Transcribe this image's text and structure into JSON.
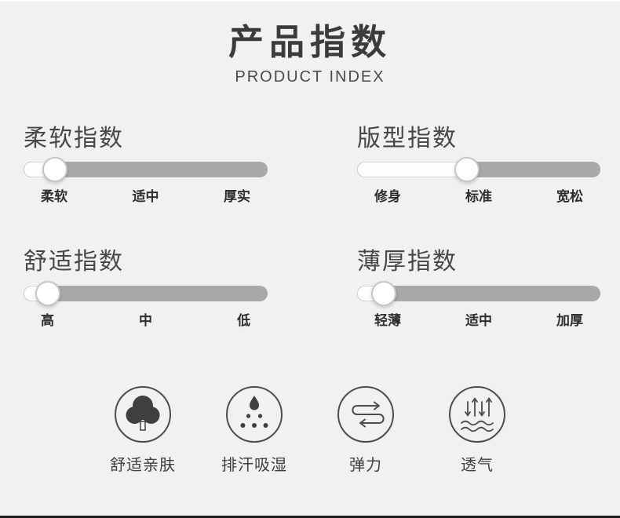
{
  "header": {
    "title": "产品指数",
    "subtitle": "PRODUCT INDEX"
  },
  "chart_data": {
    "type": "table",
    "title": "产品指数 (Product Index sliders)",
    "sliders": [
      {
        "name": "柔软指数",
        "scale": [
          "柔软",
          "适中",
          "厚实"
        ],
        "value_percent": 13
      },
      {
        "name": "版型指数",
        "scale": [
          "修身",
          "标准",
          "宽松"
        ],
        "value_percent": 45
      },
      {
        "name": "舒适指数",
        "scale": [
          "高",
          "中",
          "低"
        ],
        "value_percent": 10
      },
      {
        "name": "薄厚指数",
        "scale": [
          "轻薄",
          "适中",
          "加厚"
        ],
        "value_percent": 11
      }
    ]
  },
  "sliders": [
    {
      "title": "柔软指数",
      "percent": 13,
      "labels": [
        "柔软",
        "适中",
        "厚实"
      ]
    },
    {
      "title": "版型指数",
      "percent": 45,
      "labels": [
        "修身",
        "标准",
        "宽松"
      ]
    },
    {
      "title": "舒适指数",
      "percent": 10,
      "labels": [
        "高",
        "中",
        "低"
      ]
    },
    {
      "title": "薄厚指数",
      "percent": 11,
      "labels": [
        "轻薄",
        "适中",
        "加厚"
      ]
    }
  ],
  "features": [
    {
      "icon": "tree-icon",
      "label": "舒适亲肤"
    },
    {
      "icon": "sweat-drops-icon",
      "label": "排汗吸湿"
    },
    {
      "icon": "spring-icon",
      "label": "弹力"
    },
    {
      "icon": "breathability-icon",
      "label": "透气"
    }
  ],
  "colors": {
    "background": "#f2f1ef",
    "title_text": "#3b3b3b",
    "track_gray": "#a8a8a8",
    "track_fill_white": "#fefefe",
    "icon_stroke": "#4d4d4d",
    "bottom_rule": "#1f1f1f"
  }
}
